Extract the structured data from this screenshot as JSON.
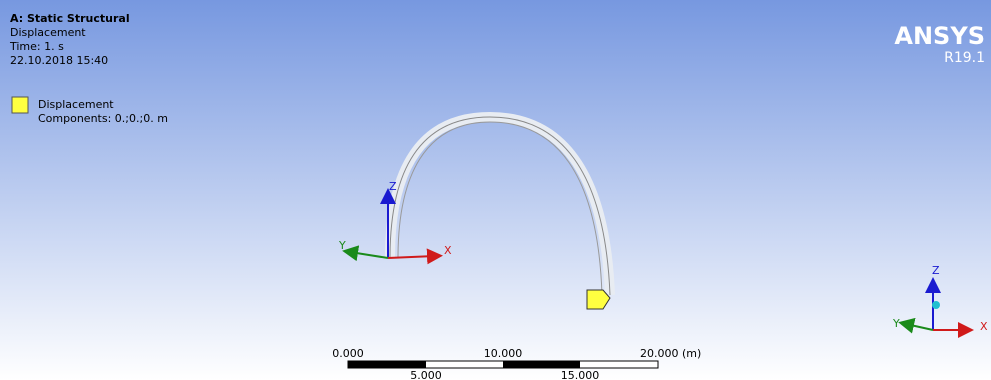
{
  "header": {
    "title": "A: Static Structural",
    "result": "Displacement",
    "time": "Time: 1. s",
    "date": "22.10.2018 15:40"
  },
  "legend": {
    "label": "Displacement",
    "components": "Components: 0.;0.;0. m"
  },
  "brand": {
    "name": "ANSYS",
    "version": "R19.1"
  },
  "triad": {
    "z": "Z",
    "y": "Y",
    "x": "X"
  },
  "corner_triad": {
    "z": "Z",
    "y": "Y",
    "x": "X"
  },
  "scale_bar": {
    "top": [
      "0.000",
      "10.000",
      "20.000 (m)"
    ],
    "bottom": [
      "5.000",
      "15.000"
    ]
  }
}
